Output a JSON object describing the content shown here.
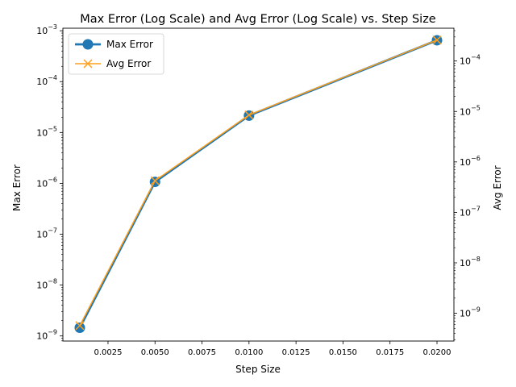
{
  "chart_data": {
    "type": "line",
    "title": "Max Error (Log Scale) and Avg Error (Log Scale) vs. Step Size",
    "xlabel": "Step Size",
    "ylabel_left": "Max Error",
    "ylabel_right": "Avg Error",
    "x": [
      0.001,
      0.005,
      0.01,
      0.02
    ],
    "xlim": [
      0.0001,
      0.0209
    ],
    "xticks": [
      0.0025,
      0.005,
      0.0075,
      0.01,
      0.0125,
      0.015,
      0.0175,
      0.02
    ],
    "xtick_labels": [
      "0.0025",
      "0.0050",
      "0.0075",
      "0.0100",
      "0.0125",
      "0.0150",
      "0.0175",
      "0.0200"
    ],
    "y_left_scale": "log",
    "y_left_lim_exp": [
      -9.1,
      -2.95
    ],
    "y_left_ticks_exp": [
      -9,
      -8,
      -7,
      -6,
      -5,
      -4,
      -3
    ],
    "y_left_tick_base": "10",
    "y_right_scale": "log",
    "y_right_lim_exp": [
      -9.55,
      -3.35
    ],
    "y_right_ticks_exp": [
      -9,
      -8,
      -7,
      -6,
      -5,
      -4
    ],
    "y_right_tick_base": "10",
    "series": [
      {
        "name": "Max Error",
        "axis": "left",
        "values": [
          1.45e-09,
          1.07e-06,
          2.15e-05,
          0.00065
        ],
        "color": "#1f77b4",
        "marker": "circle"
      },
      {
        "name": "Avg Error",
        "axis": "right",
        "values": [
          5.7e-10,
          4.25e-07,
          8.5e-06,
          0.00026
        ],
        "color": "#ff9f1c",
        "marker": "x"
      }
    ],
    "legend_position": "top-left",
    "grid": false
  }
}
